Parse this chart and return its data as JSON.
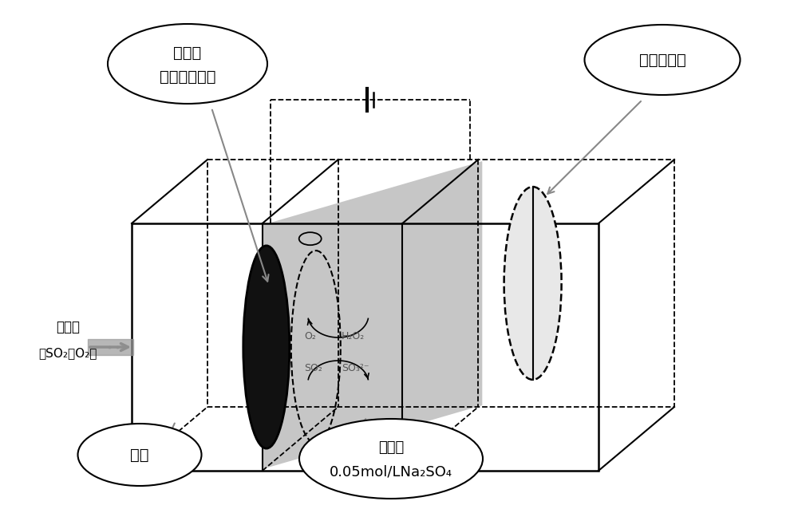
{
  "bg_color": "#ffffff",
  "line_color": "#000000",
  "gray_fill": "#c0c0c0",
  "black_fill": "#111111",
  "white_fill": "#e8e8e8",
  "arrow_color": "#888888",
  "cathode_line1": "阴极：",
  "cathode_line2": "气体扩散电极",
  "anode_label": "阳极：铂丝",
  "gas_chamber": "气室",
  "electrolyte1": "电解液",
  "electrolyte2": "0.05mol/LNa₂SO₄",
  "mixed1": "混合气",
  "mixed2": "（SO₂和O₂）",
  "O2": "O₂",
  "H2O2": "H₂O₂",
  "SO2": "SO₂",
  "SO3": "SO₃²⁻"
}
